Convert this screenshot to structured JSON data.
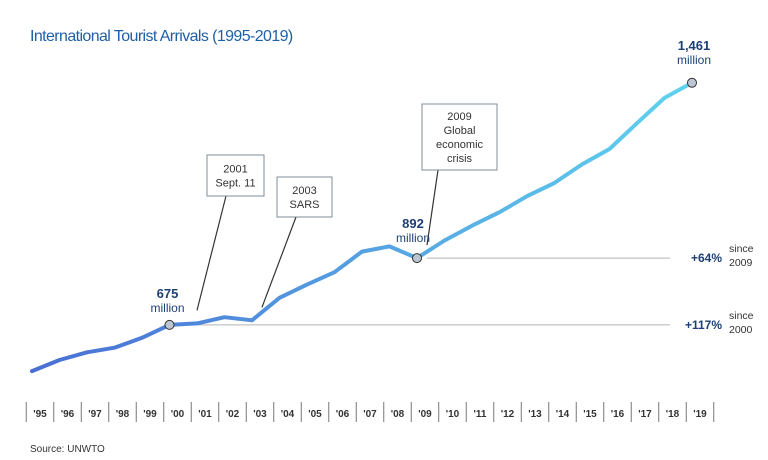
{
  "chart_data": {
    "type": "line",
    "title": "International Tourist Arrivals (1995-2019)",
    "xlabel": "",
    "ylabel": "",
    "x": [
      "'95",
      "'96",
      "'97",
      "'98",
      "'99",
      "'00",
      "'01",
      "'02",
      "'03",
      "'04",
      "'05",
      "'06",
      "'07",
      "'08",
      "'09",
      "'10",
      "'11",
      "'12",
      "'13",
      "'14",
      "'15",
      "'16",
      "'17",
      "'18",
      "'19"
    ],
    "series": [
      {
        "values": [
          525,
          561,
          586,
          601,
          633,
          675,
          680,
          700,
          690,
          763,
          806,
          846,
          913,
          930,
          892,
          949,
          997,
          1041,
          1093,
          1136,
          1196,
          1246,
          1330,
          1412,
          1461
        ]
      }
    ],
    "ylim": [
      350,
      1600
    ],
    "grid": false,
    "colors": {
      "line_start": "#4a6ed4",
      "line_end": "#5fd3ee",
      "text_dark": "#1d3f73",
      "title": "#1f5fa8"
    },
    "annotations": {
      "callouts": [
        {
          "lines": [
            "2001",
            "Sept. 11"
          ],
          "year": "'01"
        },
        {
          "lines": [
            "2003",
            "SARS"
          ],
          "year": "'03"
        },
        {
          "lines": [
            "2009",
            "Global",
            "economic",
            "crisis"
          ],
          "year": "'09"
        }
      ],
      "values": [
        {
          "value": "675",
          "unit": "million",
          "year": "'00"
        },
        {
          "value": "892",
          "unit": "million",
          "year": "'09"
        },
        {
          "value": "1,461",
          "unit": "million",
          "year": "'19"
        }
      ],
      "growth": [
        {
          "pct": "+64%",
          "since_word": "since",
          "since_year": "2009",
          "from": "'09"
        },
        {
          "pct": "+117%",
          "since_word": "since",
          "since_year": "2000",
          "from": "'00"
        }
      ]
    },
    "source": "Source: UNWTO"
  }
}
